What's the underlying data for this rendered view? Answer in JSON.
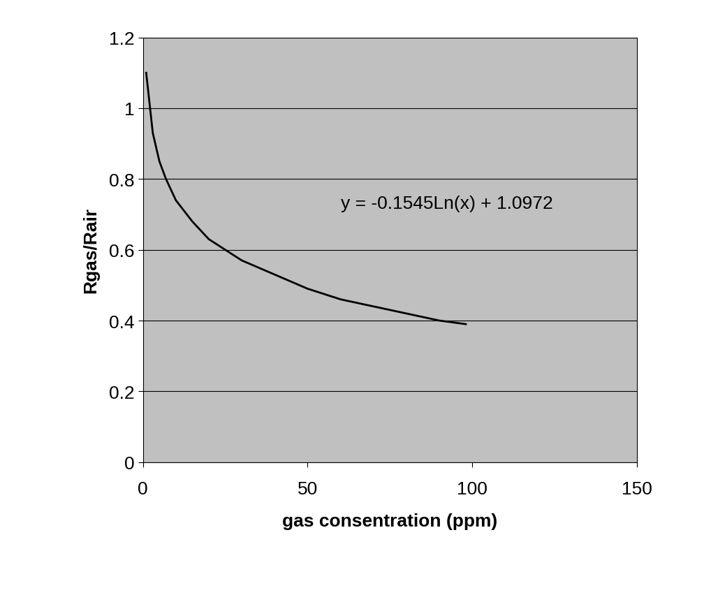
{
  "chart_data": {
    "type": "line",
    "x_label": "gas consentration (ppm)",
    "y_label": "Rgas/Rair",
    "annotation": "y = -0.1545Ln(x) + 1.0972",
    "x": [
      1,
      3,
      5,
      7,
      10,
      15,
      20,
      25,
      30,
      40,
      50,
      60,
      70,
      80,
      90,
      98
    ],
    "series": [
      {
        "name": "Rgas/Rair",
        "color": "#000000",
        "values": [
          1.1,
          0.93,
          0.85,
          0.8,
          0.74,
          0.68,
          0.63,
          0.6,
          0.57,
          0.53,
          0.49,
          0.46,
          0.44,
          0.42,
          0.4,
          0.39
        ]
      }
    ],
    "xlim": [
      0,
      150
    ],
    "xticks": [
      0,
      50,
      100,
      150
    ],
    "ylim": [
      0,
      1.2
    ],
    "yticks": [
      0,
      0.2,
      0.4,
      0.6,
      0.8,
      1,
      1.2
    ],
    "grid": true
  }
}
